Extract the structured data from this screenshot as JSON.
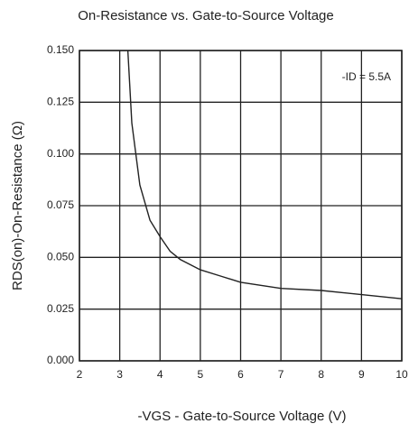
{
  "chart_data": {
    "type": "line",
    "title": "On-Resistance vs. Gate-to-Source Voltage",
    "xlabel": "-VGS - Gate-to-Source Voltage (V)",
    "ylabel": "RDS(on)-On-Resistance (Ω)",
    "annotation": "-ID = 5.5A",
    "x": [
      3.2,
      3.3,
      3.5,
      3.75,
      4,
      4.25,
      4.5,
      5,
      5.5,
      6,
      7,
      8,
      9,
      10
    ],
    "values": [
      0.15,
      0.115,
      0.085,
      0.068,
      0.06,
      0.053,
      0.049,
      0.044,
      0.041,
      0.038,
      0.035,
      0.034,
      0.032,
      0.03
    ],
    "color": "#222222",
    "xlim": [
      2,
      10
    ],
    "xticks": [
      2,
      3,
      4,
      5,
      6,
      7,
      8,
      9,
      10
    ],
    "ylim": [
      0,
      0.15
    ],
    "yticks": [
      {
        "value": 0,
        "label": "0.000"
      },
      {
        "value": 0.025,
        "label": "0.025"
      },
      {
        "value": 0.05,
        "label": "0.050"
      },
      {
        "value": 0.075,
        "label": "0.075"
      },
      {
        "value": 0.1,
        "label": "0.100"
      },
      {
        "value": 0.125,
        "label": "0.125"
      },
      {
        "value": 0.15,
        "label": "0.150"
      }
    ],
    "grid": true
  }
}
